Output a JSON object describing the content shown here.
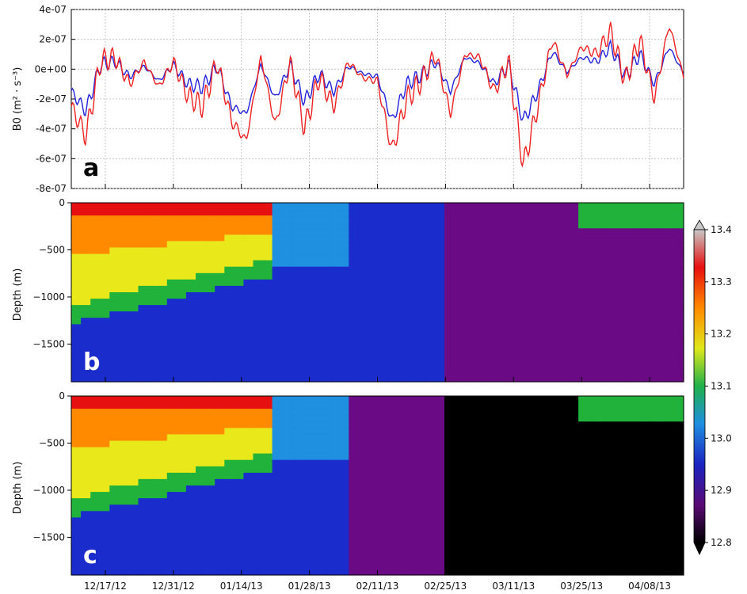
{
  "chart_data": [
    {
      "type": "line",
      "panel": "a",
      "ylabel": "B0 (m² · s⁻³)",
      "ylim": [
        -8e-07,
        4e-07
      ],
      "yticks": [
        "4e-07",
        "2e-07",
        "0e+00",
        "-2e-07",
        "-4e-07",
        "-6e-07",
        "-8e-07"
      ],
      "grid": true,
      "colors": {
        "series_a": "#2222dd",
        "series_b": "#ee2222"
      },
      "x": [
        "12/10/12",
        "12/13/12",
        "12/16/12",
        "12/19/12",
        "12/22/12",
        "12/25/12",
        "12/28/12",
        "12/31/12",
        "01/03/13",
        "01/06/13",
        "01/09/13",
        "01/12/13",
        "01/15/13",
        "01/18/13",
        "01/21/13",
        "01/24/13",
        "01/27/13",
        "01/30/13",
        "02/02/13",
        "02/05/13",
        "02/08/13",
        "02/11/13",
        "02/14/13",
        "02/17/13",
        "02/20/13",
        "02/23/13",
        "02/26/13",
        "03/01/13",
        "03/04/13",
        "03/07/13",
        "03/10/13",
        "03/13/13",
        "03/16/13",
        "03/19/13",
        "03/22/13",
        "03/25/13",
        "03/28/13",
        "03/31/13",
        "04/03/13",
        "04/06/13",
        "04/09/13",
        "04/12/13",
        "04/15/13"
      ],
      "series": [
        {
          "values": [
            -1.5e-07,
            -2.8e-07,
            3e-08,
            5e-08,
            -5e-08,
            2e-08,
            -8e-08,
            3e-08,
            -1e-07,
            -1.2e-07,
            2e-08,
            -2.5e-07,
            -3e-07,
            3e-08,
            -2e-07,
            3e-08,
            -2.2e-07,
            -3e-08,
            -1.5e-07,
            2e-08,
            -3e-08,
            -5e-08,
            -3.5e-07,
            -1e-07,
            -4e-08,
            5e-08,
            -1.5e-07,
            8e-08,
            4e-08,
            -1e-07,
            3e-08,
            -3.5e-07,
            -1.5e-07,
            1.2e-07,
            -2e-08,
            8e-08,
            5e-08,
            1.5e-07,
            -5e-08,
            1e-07,
            -1e-07,
            1.5e-07,
            -3e-08
          ]
        },
        {
          "values": [
            -2.5e-07,
            -4.5e-07,
            5e-08,
            8e-08,
            -1e-07,
            5e-08,
            -1.2e-07,
            5e-08,
            -1.8e-07,
            -2.5e-07,
            5e-08,
            -3.5e-07,
            -4.8e-07,
            8e-08,
            -3.8e-07,
            5e-08,
            -4e-07,
            -5e-08,
            -2.5e-07,
            5e-08,
            -6e-08,
            -8e-08,
            -5.5e-07,
            -2e-07,
            -8e-08,
            1e-07,
            -3e-07,
            1e-07,
            8e-08,
            -1.5e-07,
            5e-08,
            -6.5e-07,
            -2.5e-07,
            2e-07,
            -4e-08,
            1.5e-07,
            1e-07,
            2.5e-07,
            -8e-08,
            2e-07,
            -2e-07,
            3e-07,
            -5e-08
          ]
        }
      ],
      "letter": "a"
    },
    {
      "type": "heatmap",
      "panel": "b",
      "ylabel": "Depth (m)",
      "ylim": [
        -1900,
        0
      ],
      "yticks": [
        "0",
        "−500",
        "−1000",
        "−1500"
      ],
      "letter": "b",
      "color_range": [
        12.8,
        13.4
      ]
    },
    {
      "type": "heatmap",
      "panel": "c",
      "ylabel": "Depth (m)",
      "ylim": [
        -1900,
        0
      ],
      "yticks": [
        "0",
        "−500",
        "−1000",
        "−1500"
      ],
      "letter": "c",
      "color_range": [
        12.8,
        13.4
      ]
    }
  ],
  "xaxis": {
    "tick_labels": [
      "12/17/12",
      "12/31/12",
      "01/14/13",
      "01/28/13",
      "02/11/13",
      "02/25/13",
      "03/11/13",
      "03/25/13",
      "04/08/13"
    ]
  },
  "colorbar": {
    "ticks": [
      "13.4",
      "13.3",
      "13.2",
      "13.1",
      "13.0",
      "12.9",
      "12.8"
    ],
    "stops": [
      "#000000",
      "#6a0a84",
      "#1a2ccc",
      "#1f8fe0",
      "#20b23a",
      "#e8e81a",
      "#ff8a00",
      "#e61010",
      "#d8d8d8"
    ]
  }
}
